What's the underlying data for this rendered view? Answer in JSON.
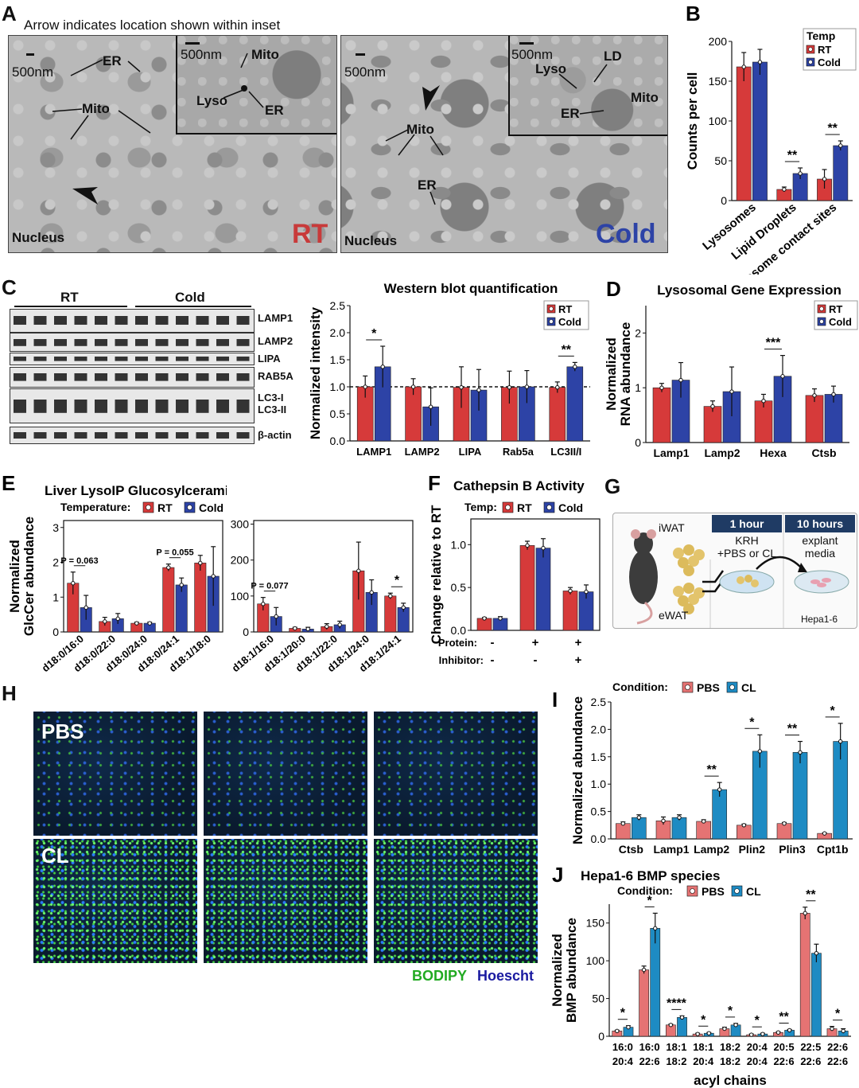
{
  "colors": {
    "rt": "#d63a3a",
    "cold": "#2d43a6",
    "pbs": "#e57373",
    "cl": "#1e8bc3",
    "bodipy": "#22aa22",
    "hoescht": "#1a1aa0"
  },
  "panelA": {
    "label": "A",
    "caption": "Arrow indicates location shown within inset",
    "rt": {
      "scale": "500nm",
      "inset_scale": "500nm",
      "er": "ER",
      "mito": "Mito",
      "inset_mito": "Mito",
      "inset_lyso": "Lyso",
      "inset_er": "ER",
      "nucleus": "Nucleus",
      "cond": "RT"
    },
    "cold": {
      "scale": "500nm",
      "inset_scale": "500nm",
      "mito": "Mito",
      "er": "ER",
      "inset_lyso": "Lyso",
      "inset_ld": "LD",
      "inset_er": "ER",
      "inset_mito": "Mito",
      "nucleus": "Nucleus",
      "cond": "Cold"
    }
  },
  "panelC": {
    "label": "C",
    "group_rt": "RT",
    "group_cold": "Cold",
    "rows": [
      "LAMP1",
      "LAMP2",
      "LIPA",
      "RAB5A",
      "LC3-I",
      "LC3-II",
      "β-actin"
    ]
  },
  "panelG": {
    "label": "G",
    "iwat": "iWAT",
    "ewat": "eWAT",
    "step1_header": "1 hour",
    "step1_text_a": "KRH",
    "step1_text_b": "+PBS or CL",
    "step2_header": "10 hours",
    "step2_text_a": "explant",
    "step2_text_b": "media",
    "cells": "Hepa1-6"
  },
  "panelH": {
    "label": "H",
    "pbs": "PBS",
    "cl": "CL",
    "bodipy": "BODIPY",
    "hoescht": "Hoescht"
  },
  "chart_data": [
    {
      "id": "B",
      "type": "bar",
      "label": "B",
      "legend_title": "Temp",
      "legend_placement": "top-right",
      "categories": [
        "Lysosomes",
        "Lipid Droplets",
        "LD:Lysosome contact sites"
      ],
      "ylabel": "Counts per cell",
      "ylim": [
        0,
        200
      ],
      "yticks": [
        0,
        50,
        100,
        150,
        200
      ],
      "series": [
        {
          "name": "RT",
          "values": [
            168,
            14,
            27
          ],
          "errors": [
            18,
            3,
            12
          ]
        },
        {
          "name": "Cold",
          "values": [
            174,
            34,
            69
          ],
          "errors": [
            16,
            7,
            6
          ]
        }
      ],
      "significance": [
        {
          "category": 1,
          "text": "**"
        },
        {
          "category": 2,
          "text": "**"
        }
      ]
    },
    {
      "id": "C",
      "type": "bar",
      "title": "Western blot quantification",
      "legend_placement": "top-right",
      "categories": [
        "LAMP1",
        "LAMP2",
        "LIPA",
        "Rab5a",
        "LC3II/I"
      ],
      "ylabel": "Normalized intensity",
      "ylim": [
        0,
        2.5
      ],
      "yticks": [
        0.0,
        0.5,
        1.0,
        1.5,
        2.0,
        2.5
      ],
      "reference_line": 1.0,
      "series": [
        {
          "name": "RT",
          "values": [
            1.0,
            1.0,
            0.99,
            0.99,
            0.99
          ],
          "errors": [
            0.2,
            0.15,
            0.38,
            0.3,
            0.1
          ]
        },
        {
          "name": "Cold",
          "values": [
            1.37,
            0.63,
            0.94,
            1.0,
            1.37
          ],
          "errors": [
            0.38,
            0.35,
            0.38,
            0.3,
            0.08
          ]
        }
      ],
      "significance": [
        {
          "category": 0,
          "text": "*"
        },
        {
          "category": 4,
          "text": "**"
        }
      ]
    },
    {
      "id": "D",
      "type": "bar",
      "label": "D",
      "title": "Lysosomal Gene Expression",
      "legend_placement": "top-right",
      "categories": [
        "Lamp1",
        "Lamp2",
        "Hexa",
        "Ctsb"
      ],
      "ylabel": "Normalized RNA abundance",
      "ylim": [
        0,
        2.5
      ],
      "yticks": [
        0,
        1,
        2
      ],
      "series": [
        {
          "name": "RT",
          "values": [
            1.0,
            0.66,
            0.76,
            0.86
          ],
          "errors": [
            0.08,
            0.1,
            0.12,
            0.12
          ]
        },
        {
          "name": "Cold",
          "values": [
            1.14,
            0.93,
            1.21,
            0.88
          ],
          "errors": [
            0.32,
            0.45,
            0.38,
            0.15
          ]
        }
      ],
      "significance": [
        {
          "category": 2,
          "text": "***"
        }
      ]
    },
    {
      "id": "E1",
      "type": "bar",
      "label": "E",
      "title": "Liver LysoIP Glucosylceramide species",
      "legend_title": "Temperature:",
      "legend_placement": "top",
      "categories": [
        "d18:0/16:0",
        "d18:0/22:0",
        "d18:0/24:0",
        "d18:0/24:1",
        "d18:1/18:0"
      ],
      "ylabel": "Normalized GlcCer abundance",
      "ylim": [
        0,
        3.2
      ],
      "yticks": [
        0,
        1,
        2,
        3
      ],
      "series": [
        {
          "name": "RT",
          "values": [
            1.4,
            0.3,
            0.25,
            1.85,
            1.98
          ],
          "errors": [
            0.32,
            0.12,
            0.03,
            0.1,
            0.22
          ]
        },
        {
          "name": "Cold",
          "values": [
            0.7,
            0.38,
            0.25,
            1.35,
            1.6
          ],
          "errors": [
            0.35,
            0.15,
            0.03,
            0.2,
            0.85
          ]
        }
      ],
      "significance": [
        {
          "category": 0,
          "text": "P = 0.063"
        },
        {
          "category": 3,
          "text": "P = 0.055"
        }
      ]
    },
    {
      "id": "E2",
      "type": "bar",
      "categories": [
        "d18:1/16:0",
        "d18:1/20:0",
        "d18:1/22:0",
        "d18:1/24:0",
        "d18:1/24:1"
      ],
      "ylim": [
        0,
        310
      ],
      "yticks": [
        0,
        100,
        200,
        300
      ],
      "series": [
        {
          "name": "RT",
          "values": [
            78,
            10,
            15,
            170,
            100
          ],
          "errors": [
            18,
            3,
            8,
            80,
            8
          ]
        },
        {
          "name": "Cold",
          "values": [
            43,
            8,
            20,
            110,
            68
          ],
          "errors": [
            25,
            5,
            10,
            35,
            12
          ]
        }
      ],
      "significance": [
        {
          "category": 0,
          "text": "P = 0.077"
        },
        {
          "category": 4,
          "text": "*"
        }
      ]
    },
    {
      "id": "F",
      "type": "bar",
      "label": "F",
      "title": "Cathepsin B Activity",
      "legend_title": "Temp:",
      "legend_placement": "top",
      "categories": [
        "1",
        "2",
        "3"
      ],
      "protein_row": [
        "Protein:",
        "-",
        "+",
        "+"
      ],
      "inhibitor_row": [
        "Inhibitor:",
        "-",
        "-",
        "+"
      ],
      "ylabel": "Change relative to RT",
      "ylim": [
        0,
        1.3
      ],
      "yticks": [
        0.0,
        0.5,
        1.0
      ],
      "series": [
        {
          "name": "RT",
          "values": [
            0.14,
            0.99,
            0.46
          ],
          "errors": [
            0.01,
            0.05,
            0.04
          ]
        },
        {
          "name": "Cold",
          "values": [
            0.14,
            0.96,
            0.45
          ],
          "errors": [
            0.02,
            0.11,
            0.08
          ]
        }
      ]
    },
    {
      "id": "I",
      "type": "bar",
      "label": "I",
      "legend_title": "Condition:",
      "legend_placement": "top",
      "categories": [
        "Ctsb",
        "Lamp1",
        "Lamp2",
        "Plin2",
        "Plin3",
        "Cpt1b"
      ],
      "ylabel": "Normalized abundance",
      "ylim": [
        0,
        2.5
      ],
      "yticks": [
        0.0,
        0.5,
        1.0,
        1.5,
        2.0,
        2.5
      ],
      "series": [
        {
          "name": "PBS",
          "values": [
            0.28,
            0.33,
            0.32,
            0.25,
            0.28,
            0.1
          ],
          "errors": [
            0.03,
            0.07,
            0.03,
            0.02,
            0.02,
            0.01
          ]
        },
        {
          "name": "CL",
          "values": [
            0.39,
            0.39,
            0.9,
            1.6,
            1.58,
            1.78
          ],
          "errors": [
            0.05,
            0.05,
            0.13,
            0.3,
            0.2,
            0.33
          ]
        }
      ],
      "significance": [
        {
          "category": 2,
          "text": "**"
        },
        {
          "category": 3,
          "text": "*"
        },
        {
          "category": 4,
          "text": "**"
        },
        {
          "category": 5,
          "text": "*"
        }
      ]
    },
    {
      "id": "J",
      "type": "bar",
      "label": "J",
      "title": "Hepa1-6 BMP species",
      "legend_title": "Condition:",
      "legend_placement": "top",
      "categories": [
        [
          "16:0",
          "20:4"
        ],
        [
          "16:0",
          "22:6"
        ],
        [
          "18:1",
          "18:2"
        ],
        [
          "18:1",
          "20:4"
        ],
        [
          "18:2",
          "18:2"
        ],
        [
          "20:4",
          "20:4"
        ],
        [
          "20:5",
          "22:6"
        ],
        [
          "22:5",
          "22:6"
        ],
        [
          "22:6",
          "22:6"
        ]
      ],
      "xlabel": "acyl chains",
      "ylabel": "Normalized BMP abundance",
      "ylim": [
        0,
        175
      ],
      "yticks": [
        0,
        50,
        100,
        150
      ],
      "series": [
        {
          "name": "PBS",
          "values": [
            7,
            88,
            15,
            3,
            10,
            2,
            5,
            163,
            10
          ],
          "errors": [
            1,
            5,
            1,
            1,
            2,
            1,
            1,
            8,
            3
          ]
        },
        {
          "name": "CL",
          "values": [
            12,
            143,
            25,
            4,
            15,
            3,
            8,
            110,
            7
          ],
          "errors": [
            2,
            20,
            2,
            1,
            2,
            1,
            1,
            12,
            3
          ]
        }
      ],
      "significance": [
        {
          "category": 0,
          "text": "*"
        },
        {
          "category": 1,
          "text": "*"
        },
        {
          "category": 2,
          "text": "****"
        },
        {
          "category": 3,
          "text": "*"
        },
        {
          "category": 4,
          "text": "*"
        },
        {
          "category": 5,
          "text": "*"
        },
        {
          "category": 6,
          "text": "**"
        },
        {
          "category": 7,
          "text": "**"
        },
        {
          "category": 8,
          "text": "*"
        }
      ]
    }
  ]
}
